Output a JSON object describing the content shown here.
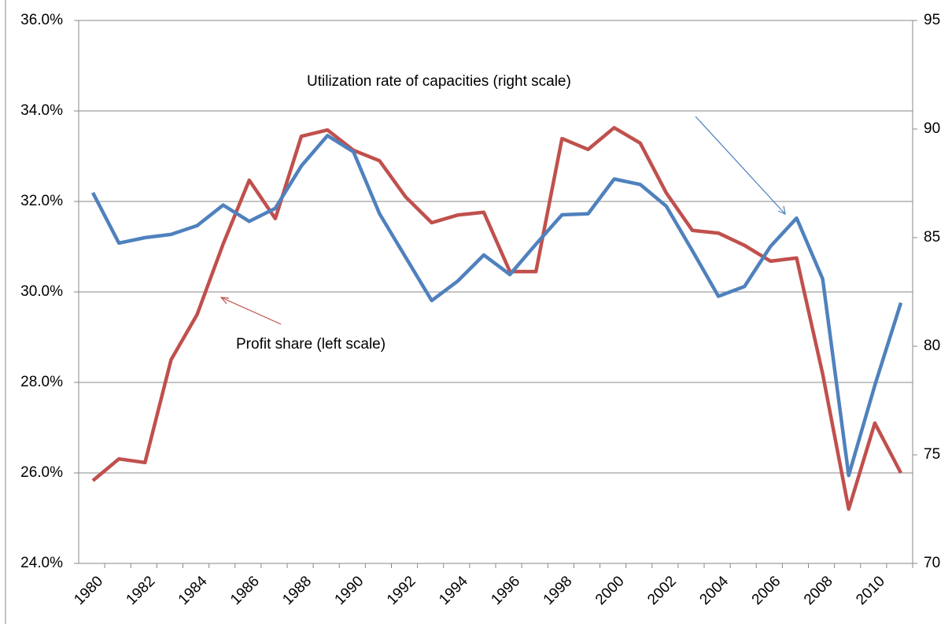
{
  "chart_data": {
    "type": "line",
    "categories": [
      "1980",
      null,
      "1982",
      null,
      "1984",
      null,
      "1986",
      null,
      "1988",
      null,
      "1990",
      null,
      "1992",
      null,
      "1994",
      null,
      "1996",
      null,
      "1998",
      null,
      "2000",
      null,
      "2002",
      null,
      "2004",
      null,
      "2006",
      null,
      "2008",
      null,
      "2010",
      null
    ],
    "series": [
      {
        "name": "Profit share (left scale)",
        "color": "#c0504d",
        "values": [
          25.83,
          26.31,
          26.23,
          28.5,
          29.5,
          31.06,
          32.47,
          31.62,
          33.44,
          33.58,
          33.13,
          32.9,
          32.1,
          31.53,
          31.7,
          31.76,
          30.45,
          30.45,
          33.39,
          33.15,
          33.63,
          33.29,
          32.19,
          31.36,
          31.3,
          31.03,
          30.68,
          30.75,
          28.19,
          25.2,
          27.1,
          26.0
        ]
      },
      {
        "name": "Utilization rate of capacities (right scale)",
        "color": "#4f81bd",
        "axis": "y2",
        "values": [
          87.07,
          84.75,
          85.0,
          85.15,
          85.55,
          86.5,
          85.75,
          86.35,
          88.3,
          89.7,
          88.95,
          86.1,
          84.1,
          82.1,
          83.0,
          84.2,
          83.3,
          84.7,
          86.05,
          86.1,
          87.7,
          87.45,
          86.45,
          84.4,
          82.3,
          82.75,
          84.6,
          85.9,
          83.1,
          74.05,
          78.2,
          82.0
        ]
      }
    ],
    "ylim": [
      24,
      36
    ],
    "yticks": [
      {
        "value": 24,
        "label": "24.0%"
      },
      {
        "value": 26,
        "label": "26.0%"
      },
      {
        "value": 28,
        "label": "28.0%"
      },
      {
        "value": 30,
        "label": "30.0%"
      },
      {
        "value": 32,
        "label": "32.0%"
      },
      {
        "value": 34,
        "label": "34.0%"
      },
      {
        "value": 36,
        "label": "36.0%"
      }
    ],
    "y2lim": [
      70,
      95
    ],
    "y2ticks": [
      70,
      75,
      80,
      85,
      90,
      95
    ],
    "grid": true
  }
}
